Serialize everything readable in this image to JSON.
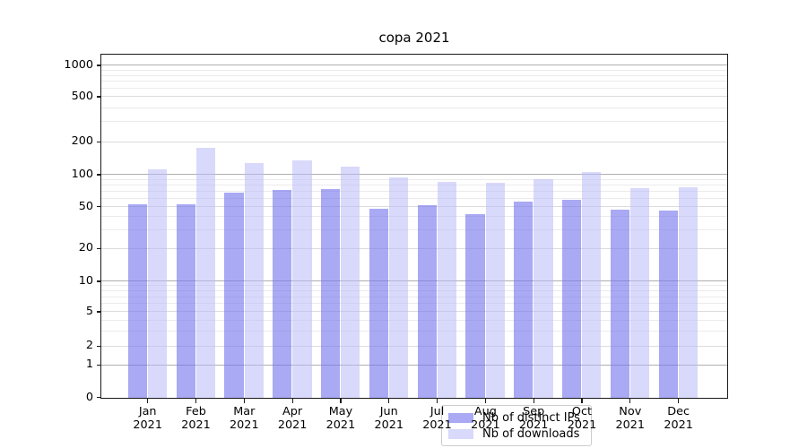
{
  "chart_data": {
    "type": "bar",
    "title": "copa 2021",
    "categories": [
      "Jan 2021",
      "Feb 2021",
      "Mar 2021",
      "Apr 2021",
      "May 2021",
      "Jun 2021",
      "Jul 2021",
      "Aug 2021",
      "Sep 2021",
      "Oct 2021",
      "Nov 2021",
      "Dec 2021"
    ],
    "series": [
      {
        "name": "Nb of distinct IPs",
        "color": "rgba(117,117,238,0.62)",
        "values": [
          52,
          52,
          68,
          71,
          73,
          48,
          51,
          42,
          56,
          58,
          47,
          46
        ]
      },
      {
        "name": "Nb of downloads",
        "color": "rgba(186,186,247,0.55)",
        "values": [
          112,
          176,
          128,
          135,
          117,
          94,
          86,
          83,
          91,
          106,
          75,
          76
        ]
      }
    ],
    "yscale": "symlog",
    "ylim": [
      0,
      1300
    ],
    "ytick_values": [
      0,
      1,
      2,
      5,
      10,
      20,
      50,
      100,
      200,
      500,
      1000
    ],
    "ytick_labels": [
      "0",
      "1",
      "2",
      "5",
      "10",
      "20",
      "50",
      "100",
      "200",
      "500",
      "1000"
    ],
    "grid": "both",
    "legend_position": "lower center",
    "colors": {
      "major_grid": "#b0b0b0",
      "labeled_minor_grid": "#dcdcdc",
      "minor_grid": "#ebebeb",
      "spine": "#1a1a1a"
    },
    "grid_major_values": [
      1,
      10,
      100,
      1000
    ],
    "grid_labeled_minor_values": [
      2,
      5,
      20,
      50,
      200,
      500
    ],
    "grid_minor_values": [
      3,
      4,
      6,
      7,
      8,
      9,
      30,
      40,
      60,
      70,
      80,
      90,
      300,
      400,
      600,
      700,
      800,
      900
    ]
  }
}
